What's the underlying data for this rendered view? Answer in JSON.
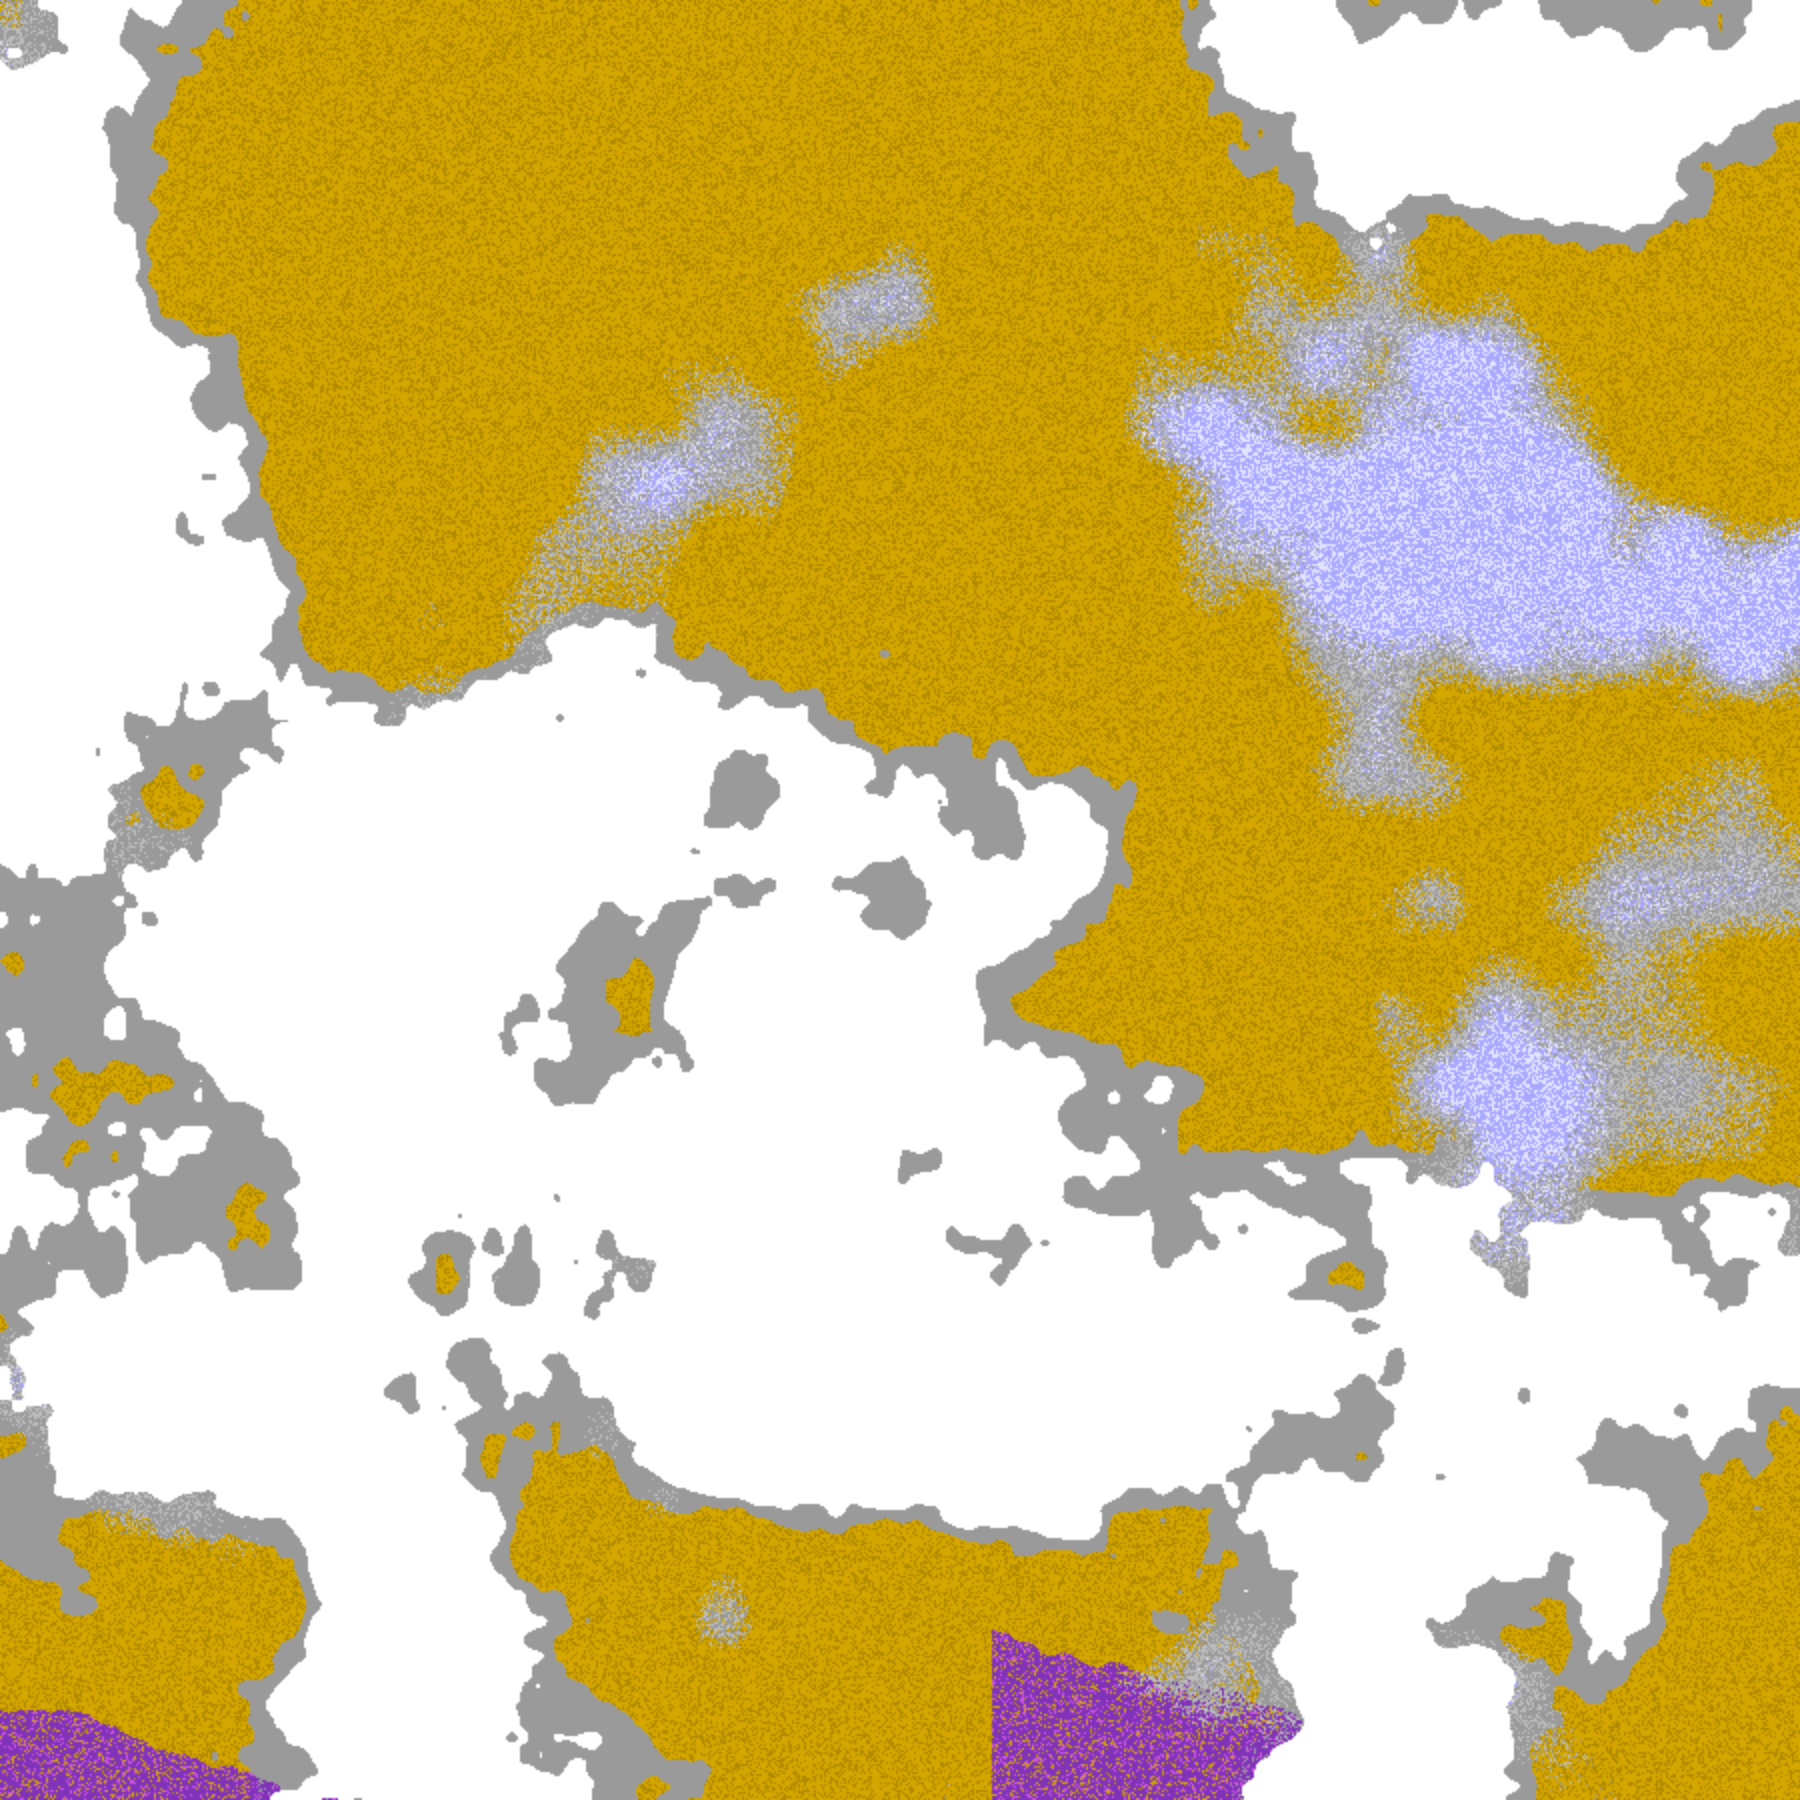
{
  "map": {
    "kind": "satellite cloud classification composite",
    "palette": {
      "clear": "#ffffff",
      "gold": "#d4a600",
      "dark_gold": "#b08a00",
      "gray": "#9a9a9a",
      "light_gray": "#bdbdbd",
      "lavender": "#a8a8ff",
      "pale_lavender": "#e4e4ff",
      "purple": "#8033b8",
      "magenta": "#cc55e0"
    }
  }
}
